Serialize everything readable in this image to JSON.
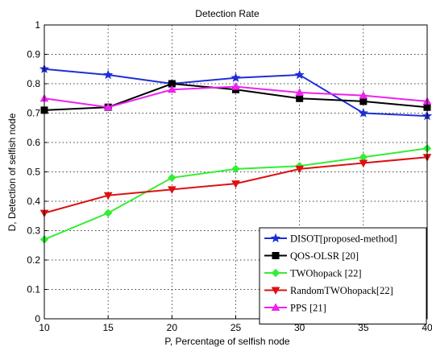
{
  "chart_data": {
    "type": "line",
    "title": "Detection Rate",
    "xlabel": "P, Percentage of selfish node",
    "ylabel": "D, Detection of selfish node",
    "xlim": [
      10,
      40
    ],
    "ylim": [
      0,
      1
    ],
    "x": [
      10,
      15,
      20,
      25,
      30,
      35,
      40
    ],
    "xticks": [
      "10",
      "15",
      "20",
      "25",
      "30",
      "35",
      "40"
    ],
    "yticks": [
      "0",
      "0.1",
      "0.2",
      "0.3",
      "0.4",
      "0.5",
      "0.6",
      "0.7",
      "0.8",
      "0.9",
      "1"
    ],
    "grid": true,
    "legend_position": "bottom-right",
    "series": [
      {
        "name": "DISOT[proposed-method]",
        "values": [
          0.85,
          0.83,
          0.8,
          0.82,
          0.83,
          0.7,
          0.69
        ],
        "color": "#1f2fd6",
        "marker": "star"
      },
      {
        "name": "QOS-OLSR  [20]",
        "values": [
          0.71,
          0.72,
          0.8,
          0.78,
          0.75,
          0.74,
          0.72
        ],
        "color": "#000000",
        "marker": "square"
      },
      {
        "name": "TWOhopack [22]",
        "values": [
          0.27,
          0.36,
          0.48,
          0.51,
          0.52,
          0.55,
          0.58
        ],
        "color": "#33ee33",
        "marker": "diamond"
      },
      {
        "name": "RandomTWOhopack[22]",
        "values": [
          0.36,
          0.42,
          0.44,
          0.46,
          0.51,
          0.53,
          0.55
        ],
        "color": "#dd1111",
        "marker": "triangle-down"
      },
      {
        "name": "PPS  [21]",
        "values": [
          0.75,
          0.72,
          0.78,
          0.79,
          0.77,
          0.76,
          0.74
        ],
        "color": "#ee22ee",
        "marker": "triangle-up"
      }
    ]
  }
}
